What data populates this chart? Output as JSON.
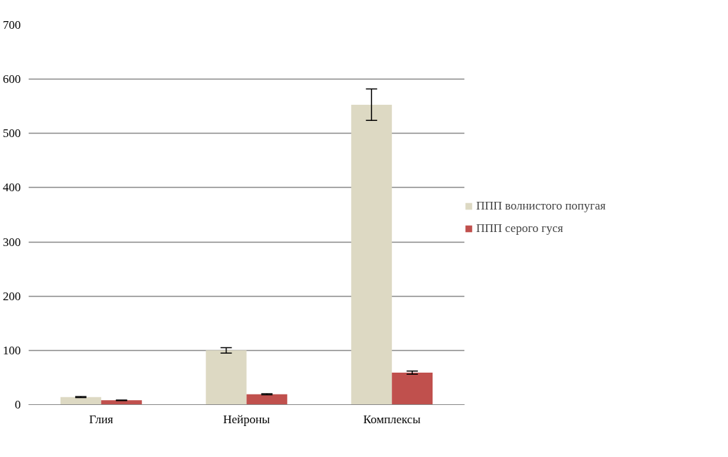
{
  "chart_data": {
    "type": "bar",
    "categories": [
      "Глия",
      "Нейроны",
      "Комплексы"
    ],
    "series": [
      {
        "name": "ППП волнистого попугая",
        "color": "#ddd9c3",
        "values": [
          14,
          100,
          553
        ],
        "errors": [
          1,
          5,
          29
        ]
      },
      {
        "name": "ППП серого гуся",
        "color": "#c0504d",
        "values": [
          8,
          19,
          59
        ],
        "errors": [
          0.5,
          1,
          3
        ]
      }
    ],
    "ylim": [
      0,
      700
    ],
    "yticks": [
      0,
      100,
      200,
      300,
      400,
      500,
      600,
      700
    ],
    "grid": "y",
    "legend": "right"
  }
}
